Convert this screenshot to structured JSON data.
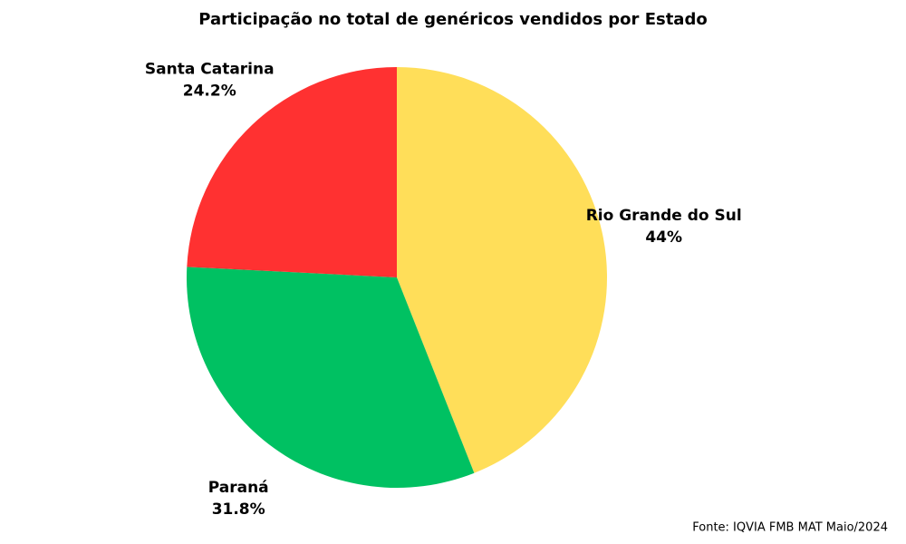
{
  "chart_data": {
    "type": "pie",
    "title": "Participação no total de genéricos vendidos por Estado",
    "categories": [
      "Rio Grande do Sul",
      "Paraná",
      "Santa Catarina"
    ],
    "values": [
      44,
      31.8,
      24.2
    ],
    "value_labels": [
      "44%",
      "31.8%",
      "24.2%"
    ],
    "colors": [
      "#FFDE59",
      "#00C162",
      "#FF3131"
    ],
    "source": "Fonte: IQVIA FMB MAT Maio/2024"
  }
}
